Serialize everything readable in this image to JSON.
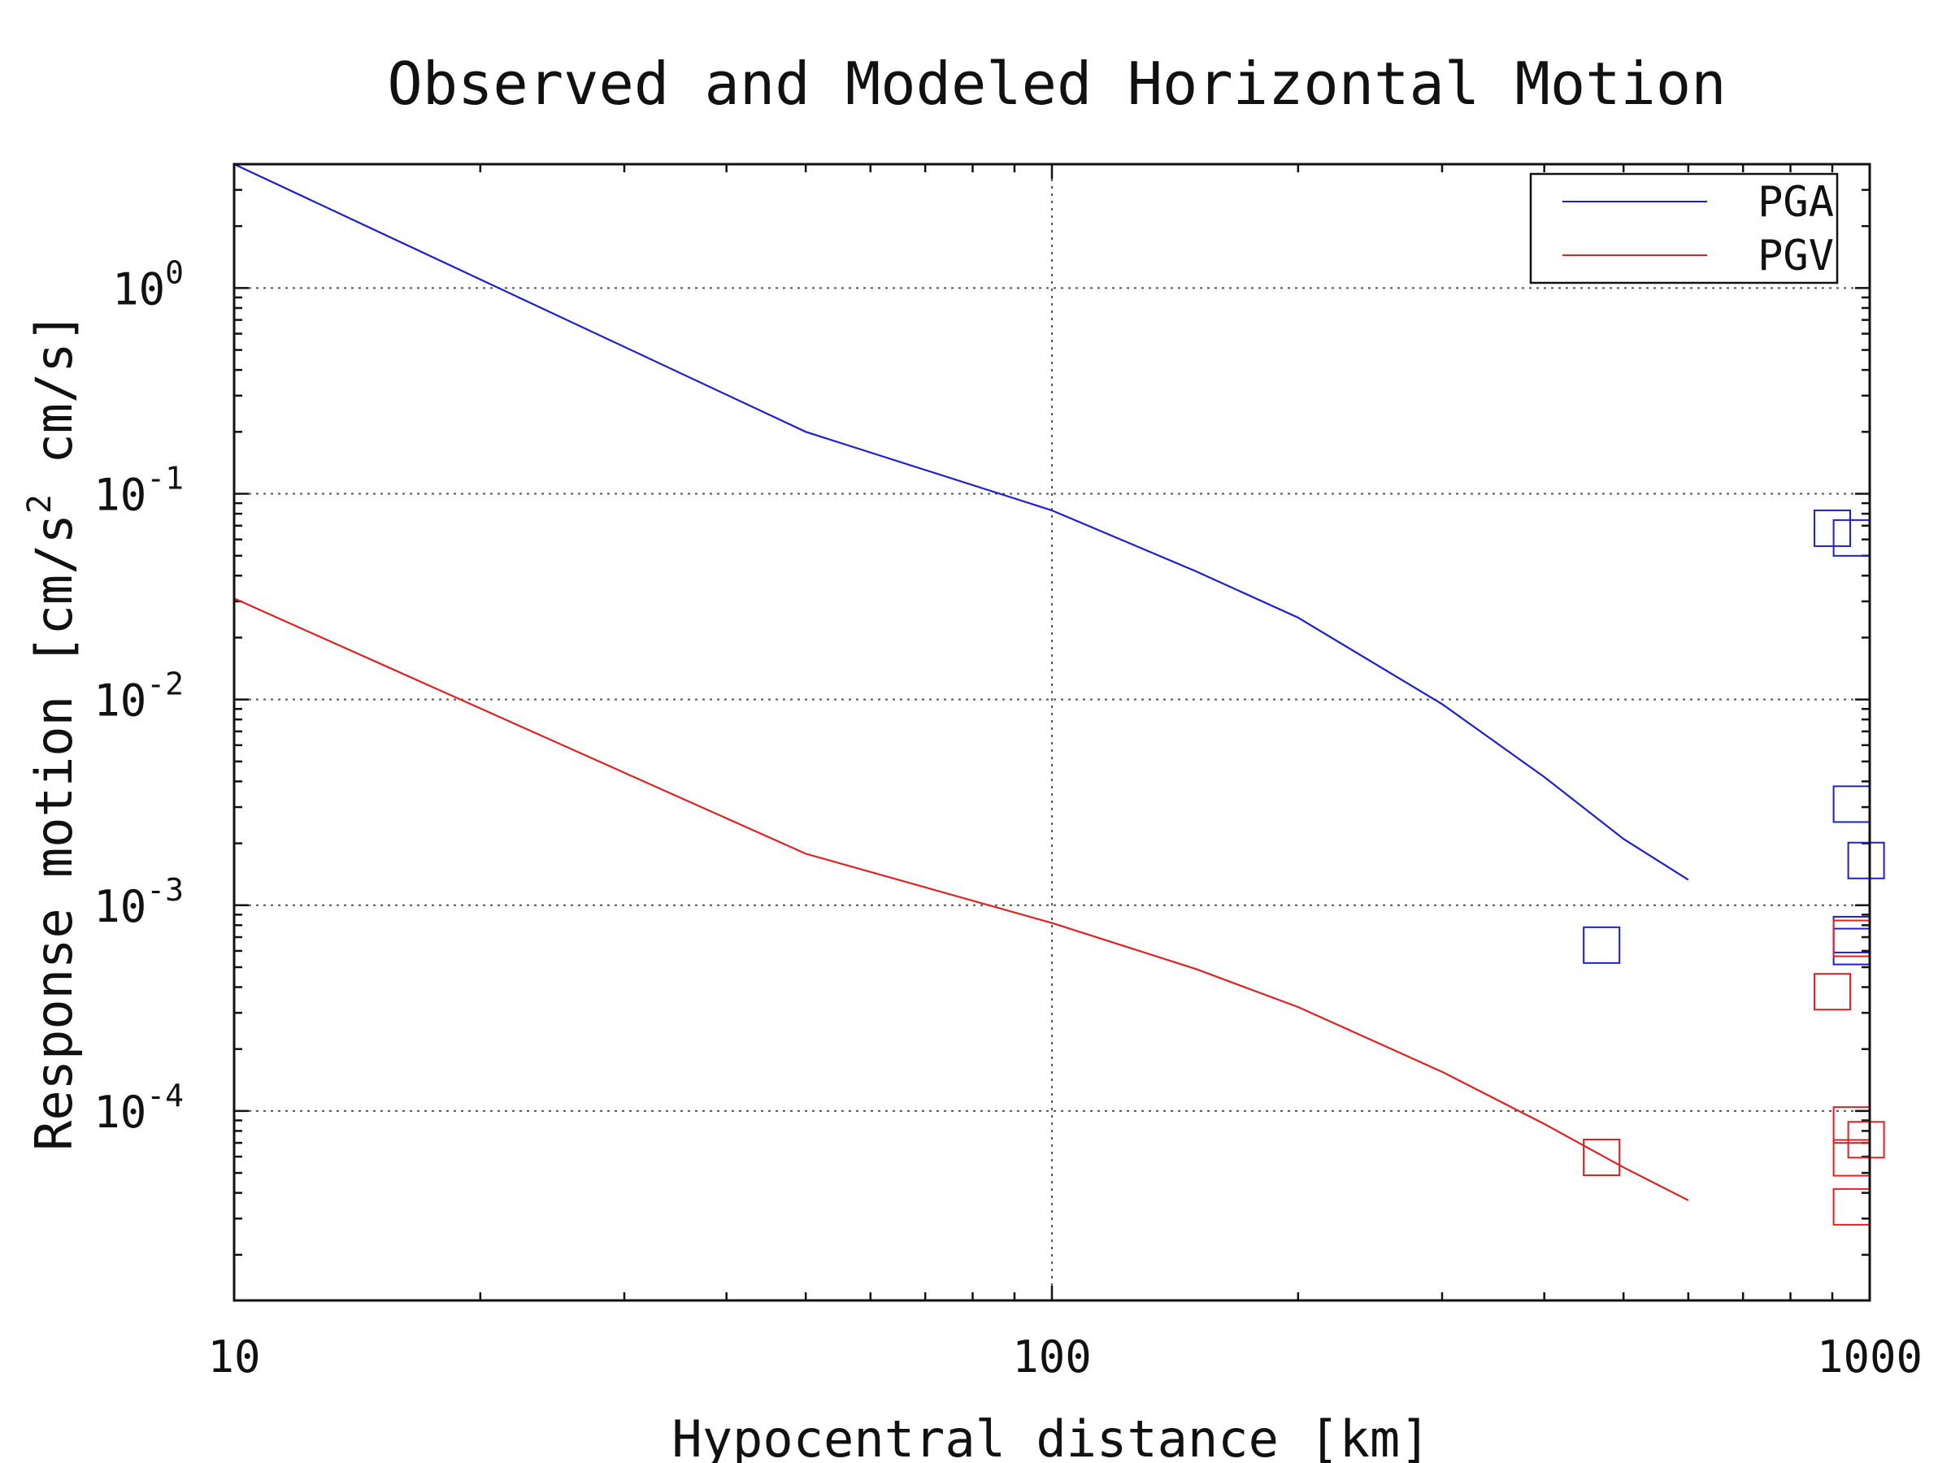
{
  "chart_data": {
    "type": "scatter",
    "title": "Observed and Modeled Horizontal Motion",
    "xlabel": "Hypocentral distance [km]",
    "ylabel": "Response motion [cm/s",
    "ylabel_sup": "2",
    "ylabel_rest": " cm/s]",
    "x_scale": "log",
    "y_scale": "log",
    "xlim": [
      10,
      1000
    ],
    "ylim": [
      1.2e-05,
      4.0
    ],
    "x_ticks": [
      {
        "value": 10,
        "label": "10"
      },
      {
        "value": 100,
        "label": "100"
      },
      {
        "value": 1000,
        "label": "1000"
      }
    ],
    "y_ticks": [
      {
        "value": 1,
        "base": "10",
        "exp": "0"
      },
      {
        "value": 0.1,
        "base": "10",
        "exp": "-1"
      },
      {
        "value": 0.01,
        "base": "10",
        "exp": "-2"
      },
      {
        "value": 0.001,
        "base": "10",
        "exp": "-3"
      },
      {
        "value": 0.0001,
        "base": "10",
        "exp": "-4"
      }
    ],
    "grid": "dotted major gridlines",
    "legend_position": "top-right",
    "series": [
      {
        "name": "PGA",
        "kind": "line",
        "color": "#1f1fcc",
        "x": [
          10,
          50,
          100,
          150,
          200,
          300,
          400,
          500,
          600
        ],
        "y": [
          4.0,
          0.2,
          0.083,
          0.042,
          0.025,
          0.0095,
          0.0042,
          0.0021,
          0.00133
        ]
      },
      {
        "name": "PGV",
        "kind": "line",
        "color": "#dd2222",
        "x": [
          10,
          50,
          100,
          150,
          200,
          300,
          400,
          500,
          600
        ],
        "y": [
          0.031,
          0.00178,
          0.00082,
          0.00049,
          0.00032,
          0.000155,
          8.65e-05,
          5.32e-05,
          3.68e-05
        ]
      }
    ],
    "observed": [
      {
        "series": "PGA",
        "color": "#1f1fcc",
        "x": [
          470,
          900,
          950,
          950,
          990,
          950,
          950
        ],
        "y": [
          0.00064,
          0.068,
          0.061,
          0.0031,
          0.00165,
          0.00072,
          0.00063
        ]
      },
      {
        "series": "PGV",
        "color": "#dd2222",
        "x": [
          470,
          900,
          950,
          950,
          990,
          950,
          950
        ],
        "y": [
          5.95e-05,
          0.00038,
          0.00069,
          8.55e-05,
          7.25e-05,
          5.92e-05,
          3.42e-05
        ]
      }
    ]
  }
}
